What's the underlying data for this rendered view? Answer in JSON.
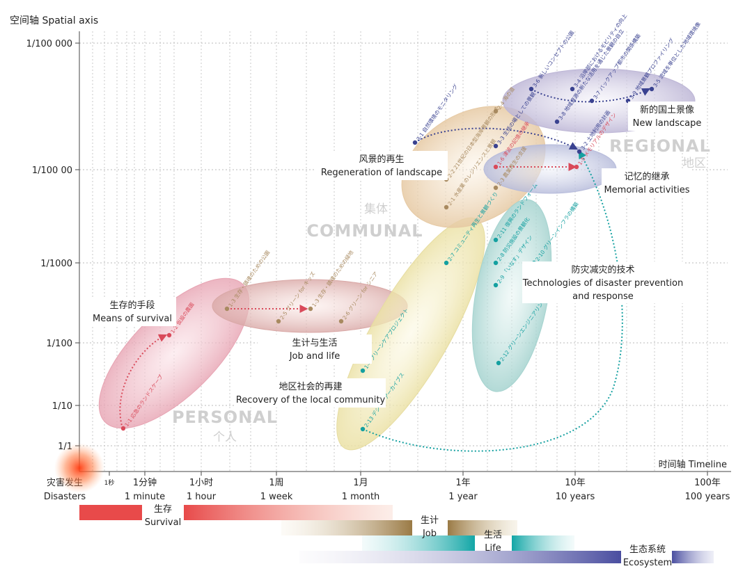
{
  "chart_data": {
    "type": "scatter",
    "y_axis_title": "空间轴  Spatial axis",
    "x_axis_title": "时间轴  Timeline",
    "y_ticks": [
      "1/100 000",
      "1/100 00",
      "1/1000",
      "1/100",
      "1/10",
      "1/1"
    ],
    "x_ticks": [
      {
        "cn": "灾害发生",
        "en": "Disasters"
      },
      {
        "cn": "1秒",
        "en": ""
      },
      {
        "cn": "1分钟",
        "en": "1 minute"
      },
      {
        "cn": "1小时",
        "en": "1 hour"
      },
      {
        "cn": "1周",
        "en": "1 week"
      },
      {
        "cn": "1月",
        "en": "1 month"
      },
      {
        "cn": "1年",
        "en": "1 year"
      },
      {
        "cn": "10年",
        "en": "10 years"
      },
      {
        "cn": "100年",
        "en": "100 years"
      }
    ],
    "scales": [
      {
        "name": "PERSONAL",
        "cn": "个人"
      },
      {
        "name": "COMMUNAL",
        "cn": "集体"
      },
      {
        "name": "REGIONAL",
        "cn": "地区"
      }
    ],
    "annotations": [
      {
        "cn": "生存的手段",
        "en": "Means of survival"
      },
      {
        "cn": "生计与生活",
        "en": "Job and life"
      },
      {
        "cn": "地区社会的再建",
        "en": "Recovery of the local community"
      },
      {
        "cn": "风景的再生",
        "en": "Regeneration of landscape"
      },
      {
        "cn": "新的国土景像",
        "en": "New landscape"
      },
      {
        "cn": "记忆的继承",
        "en": "Memorial activities"
      },
      {
        "cn": "防灾减灾的技术",
        "en": "Technologies of disaster prevention",
        "en2": "and response"
      }
    ],
    "projects": [
      {
        "id": "1-1",
        "text": "1-1 応急のランドスケープ",
        "group": "survival"
      },
      {
        "id": "1-2",
        "text": "1-2 仮設の農園",
        "group": "survival"
      },
      {
        "id": "1-3",
        "text": "1-3 生存・鎮魂のための公園",
        "group": "job"
      },
      {
        "id": "1-3b",
        "text": "1-3 生存・鎮魂のための緑地",
        "group": "job"
      },
      {
        "id": "2-5",
        "text": "2-5 グリーン for キッズ",
        "group": "job"
      },
      {
        "id": "2-6",
        "text": "2-6 グリーン for シニア",
        "group": "job"
      },
      {
        "id": "1-4",
        "text": "1-4 グリーンケアプロジェクト",
        "group": "community"
      },
      {
        "id": "2-13",
        "text": "2-13 デジタルアーカイブス",
        "group": "community"
      },
      {
        "id": "2-7",
        "text": "2-7 コミュニティ再生と景観づくり",
        "group": "community"
      },
      {
        "id": "2-11",
        "text": "2-11 復興のランドフォーム",
        "group": "tech"
      },
      {
        "id": "2-8",
        "text": "2-8 防災施設の景観化",
        "group": "tech"
      },
      {
        "id": "2-9",
        "text": "2-9 「いなす」デザイン",
        "group": "tech"
      },
      {
        "id": "2-10",
        "text": "2-10 グリーンインフラの構築",
        "group": "tech"
      },
      {
        "id": "2-12",
        "text": "2-12 グリーンエンジニアリング",
        "group": "tech"
      },
      {
        "id": "2-1",
        "text": "2-1 水産業 のレジリエンスと景観",
        "group": "landscape"
      },
      {
        "id": "2-2",
        "text": "2-2 21世紀の日本型海岸景観の形成",
        "group": "landscape"
      },
      {
        "id": "2-3",
        "text": "2-3 農業再生の支援",
        "group": "landscape"
      },
      {
        "id": "2-4",
        "text": "2-4 海の道",
        "group": "landscape"
      },
      {
        "id": "1-6",
        "text": "1-6 津波の記憶の継承",
        "group": "memory"
      },
      {
        "id": "1-5",
        "text": "1-5 メモリアルのデザイン",
        "group": "memory"
      },
      {
        "id": "3-1",
        "text": "3-1 自然環境のモニタリング",
        "group": "regional"
      },
      {
        "id": "3-2",
        "text": "3-2 土地利用の計画",
        "group": "regional"
      },
      {
        "id": "3-3",
        "text": "3-3 生活の場としての景観",
        "group": "regional"
      },
      {
        "id": "3-4",
        "text": "3-4 沿岸部におけるモビリティの向上",
        "group": "regional"
      },
      {
        "id": "3-5",
        "text": "3-5 流域を単位とした地域環境像",
        "group": "regional"
      },
      {
        "id": "3-6",
        "text": "3-6 新しいコンセプトの公園",
        "group": "regional"
      },
      {
        "id": "3-7",
        "text": "3-7 バックアップ都市の関係構築",
        "group": "regional"
      },
      {
        "id": "3-8",
        "text": "3-8 地域資源の新たな活用を通じた景観の自立",
        "group": "regional"
      },
      {
        "id": "3-9",
        "text": "3-9 地域景観プロファイリング",
        "group": "regional"
      }
    ],
    "phases": [
      {
        "cn": "生存",
        "en": "Survival",
        "color": "#e84a4a"
      },
      {
        "cn": "生计",
        "en": "Job",
        "color": "#9a7a45"
      },
      {
        "cn": "生活",
        "en": "Life",
        "color": "#12a6a6"
      },
      {
        "cn": "生态系统",
        "en": "Ecosystem",
        "color": "#4a4ea0"
      }
    ]
  }
}
